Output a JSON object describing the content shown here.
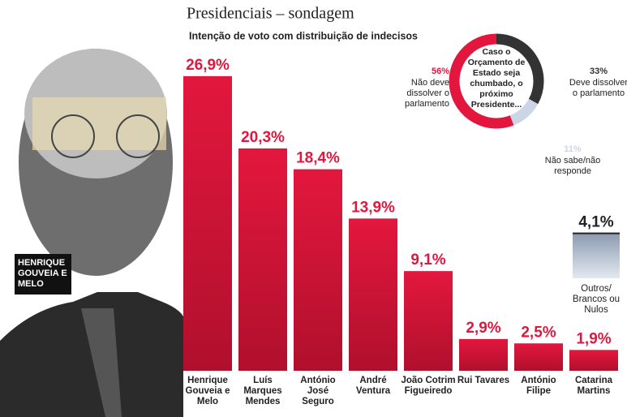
{
  "chart_data": [
    {
      "type": "bar",
      "title": "Presidenciais – sondagem",
      "subtitle": "Intenção de voto com distribuição de indecisos",
      "photo_caption": "HENRIQUE GOUVEIA E MELO",
      "categories": [
        "Henrique Gouveia e Melo",
        "Luís Marques Mendes",
        "António José Seguro",
        "André Ventura",
        "João Cotrim Figueiredo",
        "Rui Tavares",
        "António Filipe",
        "Catarina Martins"
      ],
      "values": [
        26.9,
        20.3,
        18.4,
        13.9,
        9.1,
        2.9,
        2.5,
        1.9
      ],
      "value_labels": [
        "26,9%",
        "20,3%",
        "18,4%",
        "13,9%",
        "9,1%",
        "2,9%",
        "2,5%",
        "1,9%"
      ],
      "color": "#e3173e",
      "other": {
        "label": "Outros/ Brancos ou Nulos",
        "value": 4.1,
        "value_label": "4,1%",
        "color": "#c3cedb"
      }
    },
    {
      "type": "pie",
      "center_text": "Caso o Orçamento de Estado seja chumbado, o próximo Presidente...",
      "categories": [
        "Não deve dissolver o parlamento",
        "Deve dissolver o parlamento",
        "Não sabe/não responde"
      ],
      "values": [
        56,
        33,
        11
      ],
      "value_labels": [
        "56%",
        "33%",
        "11%"
      ],
      "colors": [
        "#e3173e",
        "#333333",
        "#ccd5e6"
      ]
    }
  ]
}
